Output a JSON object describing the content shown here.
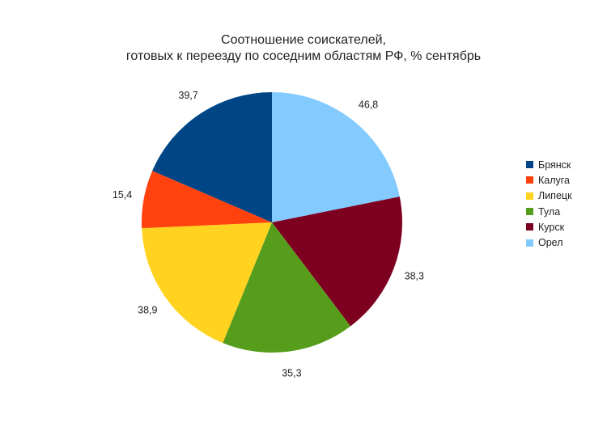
{
  "chart_data": {
    "type": "pie",
    "title": [
      "Соотношение соискателей,",
      "готовых к переезду по соседним областям РФ, % сентябрь"
    ],
    "slices": [
      {
        "name": "Брянск",
        "value": 39.7,
        "label": "39,7",
        "color": "#004586"
      },
      {
        "name": "Калуга",
        "value": 15.4,
        "label": "15,4",
        "color": "#FF420E"
      },
      {
        "name": "Липецк",
        "value": 38.9,
        "label": "38,9",
        "color": "#FFD320"
      },
      {
        "name": "Тула",
        "value": 35.3,
        "label": "35,3",
        "color": "#579D1C"
      },
      {
        "name": "Курск",
        "value": 38.3,
        "label": "38,3",
        "color": "#7E0021"
      },
      {
        "name": "Орел",
        "value": 46.8,
        "label": "46,8",
        "color": "#83CAFF"
      }
    ],
    "draw_order": [
      "Орел",
      "Курск",
      "Тула",
      "Липецк",
      "Калуга",
      "Брянск"
    ],
    "legend": "right",
    "grid": false
  }
}
